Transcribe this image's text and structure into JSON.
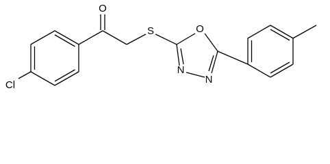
{
  "labels": [
    "O",
    "S",
    "O",
    "N",
    "N",
    "Cl"
  ]
}
